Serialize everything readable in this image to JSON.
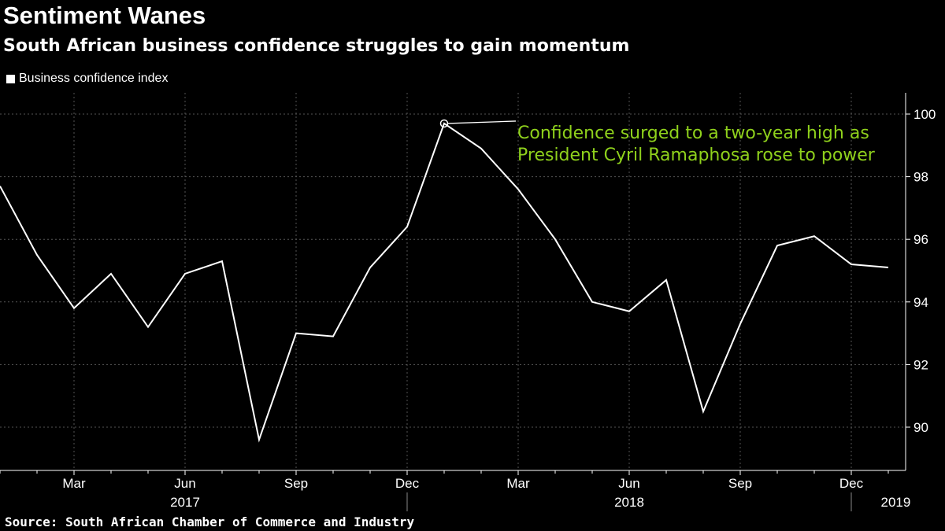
{
  "header": {
    "title": "Sentiment Wanes",
    "subtitle": "South African business confidence struggles to gain momentum"
  },
  "legend": {
    "label": "Business confidence index"
  },
  "source": "Source: South African Chamber of Commerce and Industry",
  "colors": {
    "line": "#ffffff",
    "annotation": "#8fd11c",
    "grid": "#555555"
  },
  "chart_data": {
    "type": "line",
    "title": "Sentiment Wanes",
    "subtitle": "South African business confidence struggles to gain momentum",
    "xlabel": "",
    "ylabel": "",
    "ylim": [
      88.8,
      100.7
    ],
    "yticks": [
      90,
      92,
      94,
      96,
      98,
      100
    ],
    "ytick_labels": [
      "90",
      "92",
      "94",
      "96",
      "98",
      "100"
    ],
    "x": [
      "2017-01",
      "2017-02",
      "2017-03",
      "2017-04",
      "2017-05",
      "2017-06",
      "2017-07",
      "2017-08",
      "2017-09",
      "2017-10",
      "2017-11",
      "2017-12",
      "2018-01",
      "2018-02",
      "2018-03",
      "2018-04",
      "2018-05",
      "2018-06",
      "2018-07",
      "2018-08",
      "2018-09",
      "2018-10",
      "2018-11",
      "2018-12",
      "2019-01"
    ],
    "series": [
      {
        "name": "Business confidence index",
        "values": [
          97.7,
          95.5,
          93.8,
          94.9,
          93.2,
          94.9,
          95.3,
          89.6,
          93.0,
          92.9,
          95.1,
          96.4,
          99.7,
          98.9,
          97.6,
          96.0,
          94.0,
          93.7,
          94.7,
          90.5,
          93.3,
          95.8,
          96.1,
          95.2,
          95.1
        ]
      }
    ],
    "month_ticks": [
      {
        "index": 2,
        "label": "Mar"
      },
      {
        "index": 5,
        "label": "Jun"
      },
      {
        "index": 8,
        "label": "Sep"
      },
      {
        "index": 11,
        "label": "Dec"
      },
      {
        "index": 14,
        "label": "Mar"
      },
      {
        "index": 17,
        "label": "Jun"
      },
      {
        "index": 20,
        "label": "Sep"
      },
      {
        "index": 23,
        "label": "Dec"
      }
    ],
    "year_ticks": [
      {
        "index": 5,
        "label": "2017"
      },
      {
        "index": 17,
        "label": "2018"
      },
      {
        "index": 24.2,
        "label": "2019"
      }
    ],
    "legend_position": "top-left",
    "grid": true,
    "annotation": {
      "index": 12,
      "lines": [
        "Confidence surged to a two-year high as",
        "President Cyril Ramaphosa rose to power"
      ]
    }
  }
}
